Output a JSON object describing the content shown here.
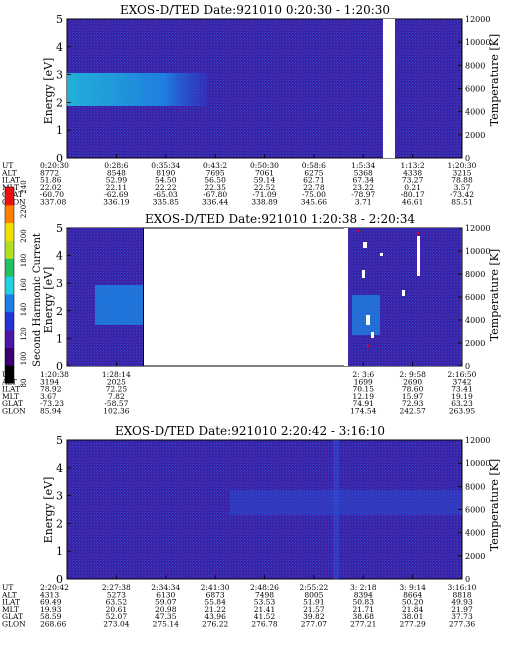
{
  "colorbar": {
    "title": "Second Harmonic Current",
    "ticks": [
      "80",
      "100",
      "120",
      "140",
      "160",
      "180",
      "200",
      "220",
      "240"
    ],
    "colors": [
      "#000000",
      "#3a0070",
      "#4a17a8",
      "#2233d8",
      "#1a7fe8",
      "#22d0e0",
      "#22c060",
      "#b0e020",
      "#f0e000",
      "#ff8000",
      "#ee1010"
    ]
  },
  "chart_data": [
    {
      "type": "heatmap",
      "title": "EXOS-D/TED   Date:921010  0:20:30 - 1:20:30",
      "ylabel": "Energy [eV]",
      "y2label": "Temperature [K]",
      "ylim": [
        0,
        5
      ],
      "y2lim": [
        0,
        12000
      ],
      "yticks": [
        "0",
        "1",
        "2",
        "3",
        "4",
        "5"
      ],
      "y2ticks": [
        "0",
        "2000",
        "4000",
        "6000",
        "8000",
        "10000",
        "12000"
      ],
      "x_rows": [
        "UT",
        "ALT",
        "ILAT",
        "MLT",
        "GLAT",
        "GLON"
      ],
      "x": [
        [
          "0:20:30",
          "0:28:6",
          "0:35:34",
          "0:43:2",
          "0:50:30",
          "0:58:6",
          "1:5:34",
          "1:13:2",
          "1:20:30"
        ],
        [
          "8772",
          "8548",
          "8190",
          "7695",
          "7061",
          "6275",
          "5368",
          "4338",
          "3215"
        ],
        [
          "51.86",
          "52.99",
          "54.50",
          "56.50",
          "59.14",
          "62.71",
          "67.34",
          "73.27",
          "78.88"
        ],
        [
          "22.02",
          "22.11",
          "22.22",
          "22.35",
          "22.52",
          "22.78",
          "23.22",
          "0.21",
          "3.57"
        ],
        [
          "-60.70",
          "-62.69",
          "-65.03",
          "-67.80",
          "-71.09",
          "-75.00",
          "-78.97",
          "-80.17",
          "-73.42"
        ],
        [
          "337.08",
          "336.19",
          "335.85",
          "336.44",
          "338.89",
          "345.66",
          "3.71",
          "46.61",
          "85.51"
        ]
      ],
      "background_level": 110,
      "band": {
        "energy_center": 2.6,
        "energy_halfwidth": 0.3,
        "ut_end": "0:43:2",
        "level": 145
      },
      "gaps_ut": [
        [
          "1:9:34",
          "1:10:48"
        ]
      ]
    },
    {
      "type": "heatmap",
      "title": "EXOS-D/TED   Date:921010  1:20:38 - 2:20:34",
      "ylabel": "Energy [eV]",
      "y2label": "Temperature [K]",
      "ylim": [
        0,
        5
      ],
      "y2lim": [
        0,
        12000
      ],
      "yticks": [
        "0",
        "1",
        "2",
        "3",
        "4",
        "5"
      ],
      "y2ticks": [
        "0",
        "2000",
        "4000",
        "6000",
        "8000",
        "10000",
        "12000"
      ],
      "x_rows": [
        "UT",
        "ALT",
        "ILAT",
        "MLT",
        "GLAT",
        "GLON"
      ],
      "x": [
        [
          "1:20:38",
          "1:28:14",
          "",
          "",
          "",
          "",
          "2: 3:6",
          "2: 9:58",
          "2:16:50"
        ],
        [
          "3194",
          "2025",
          "",
          "",
          "",
          "",
          "1699",
          "2690",
          "3742"
        ],
        [
          "78.92",
          "72.25",
          "",
          "",
          "",
          "",
          "70.15",
          "78.60",
          "73.41"
        ],
        [
          "3.67",
          "7.82",
          "",
          "",
          "",
          "",
          "12.19",
          "15.97",
          "19.19"
        ],
        [
          "-73.23",
          "-58.57",
          "",
          "",
          "",
          "",
          "74.91",
          "72.93",
          "63.23"
        ],
        [
          "85.94",
          "102.36",
          "",
          "",
          "",
          "",
          "174.54",
          "242.57",
          "263.95"
        ]
      ],
      "background_level": 105,
      "data_spans_ut": [
        [
          "1:20:38",
          "1:29:54"
        ],
        [
          "2: 1:12",
          "2:20:34"
        ]
      ],
      "band": {
        "energy_center": 2.0,
        "energy_halfwidth": 0.6,
        "level": 135
      }
    },
    {
      "type": "heatmap",
      "title": "EXOS-D/TED   Date:921010  2:20:42 - 3:16:10",
      "ylabel": "Energy [eV]",
      "y2label": "Temperature [K]",
      "ylim": [
        0,
        5
      ],
      "y2lim": [
        0,
        12000
      ],
      "yticks": [
        "0",
        "1",
        "2",
        "3",
        "4",
        "5"
      ],
      "y2ticks": [
        "0",
        "2000",
        "4000",
        "6000",
        "8000",
        "10000",
        "12000"
      ],
      "x_rows": [
        "UT",
        "ALT",
        "ILAT",
        "MLT",
        "GLAT",
        "GLON"
      ],
      "x": [
        [
          "2:20:42",
          "2:27:38",
          "2:34:34",
          "2:41:30",
          "2:48:26",
          "2:55:22",
          "3: 2:18",
          "3: 9:14",
          "3:16:10"
        ],
        [
          "4313",
          "5273",
          "6130",
          "6873",
          "7498",
          "8005",
          "8394",
          "8664",
          "8818"
        ],
        [
          "69.49",
          "63.52",
          "59.07",
          "55.84",
          "53.53",
          "51.91",
          "50.83",
          "50.20",
          "49.93"
        ],
        [
          "19.93",
          "20.61",
          "20.98",
          "21.22",
          "21.41",
          "21.57",
          "21.71",
          "21.84",
          "21.97"
        ],
        [
          "58.59",
          "52.07",
          "47.35",
          "43.96",
          "41.52",
          "39.82",
          "38.68",
          "38.01",
          "37.73"
        ],
        [
          "268.66",
          "273.04",
          "275.14",
          "276.22",
          "276.78",
          "277.07",
          "277.21",
          "277.29",
          "277.36"
        ]
      ],
      "background_level": 112,
      "band": {
        "energy_center": 2.9,
        "energy_halfwidth": 0.35,
        "level": 120
      }
    }
  ]
}
